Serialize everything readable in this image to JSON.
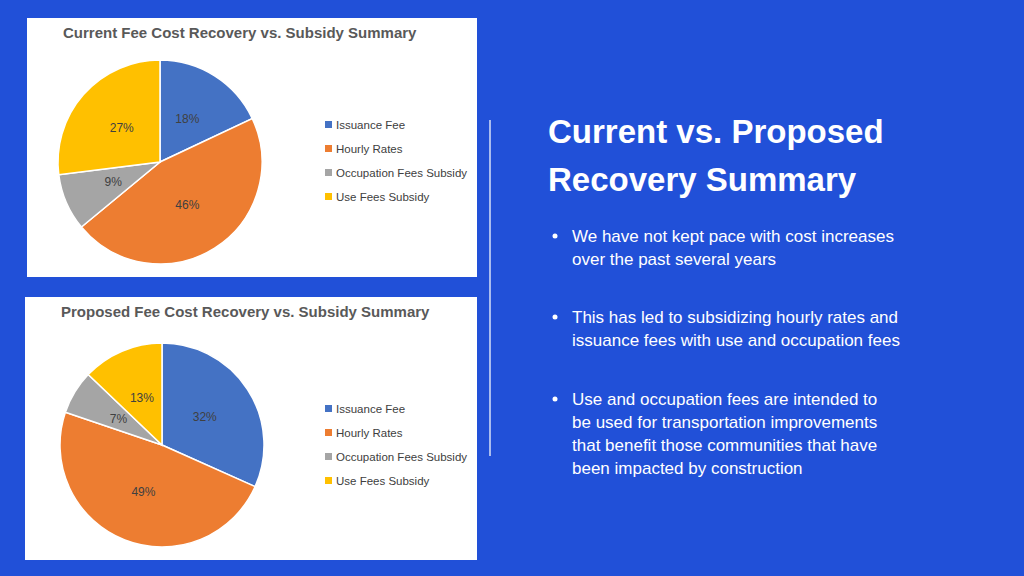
{
  "chart_data": [
    {
      "type": "pie",
      "title": "Current Fee Cost Recovery vs. Subsidy Summary",
      "categories": [
        "Issuance Fee",
        "Hourly Rates",
        "Occupation Fees Subsidy",
        "Use Fees Subsidy"
      ],
      "values": [
        18,
        46,
        9,
        27
      ],
      "value_labels": [
        "18%",
        "46%",
        "9%",
        "27%"
      ],
      "colors": [
        "#4472c4",
        "#ed7d31",
        "#a5a5a5",
        "#ffc000"
      ],
      "data_labels": true,
      "legend": "right"
    },
    {
      "type": "pie",
      "title": "Proposed Fee Cost Recovery vs. Subsidy Summary",
      "categories": [
        "Issuance Fee",
        "Hourly Rates",
        "Occupation Fees Subsidy",
        "Use Fees Subsidy"
      ],
      "values": [
        32,
        49,
        7,
        13
      ],
      "value_labels": [
        "32%",
        "49%",
        "7%",
        "13%"
      ],
      "colors": [
        "#4472c4",
        "#ed7d31",
        "#a5a5a5",
        "#ffc000"
      ],
      "data_labels": true,
      "legend": "right"
    }
  ],
  "slide": {
    "title": [
      "Current vs. Proposed",
      "Recovery Summary"
    ],
    "bullets": [
      [
        "We have not kept pace with cost increases",
        "over the past several years"
      ],
      [
        "This has led to subsidizing hourly rates and",
        "issuance fees with use and occupation fees"
      ],
      [
        "Use and occupation fees are intended to",
        "be used for transportation improvements",
        "that benefit those communities that have",
        "been impacted by construction"
      ]
    ]
  }
}
